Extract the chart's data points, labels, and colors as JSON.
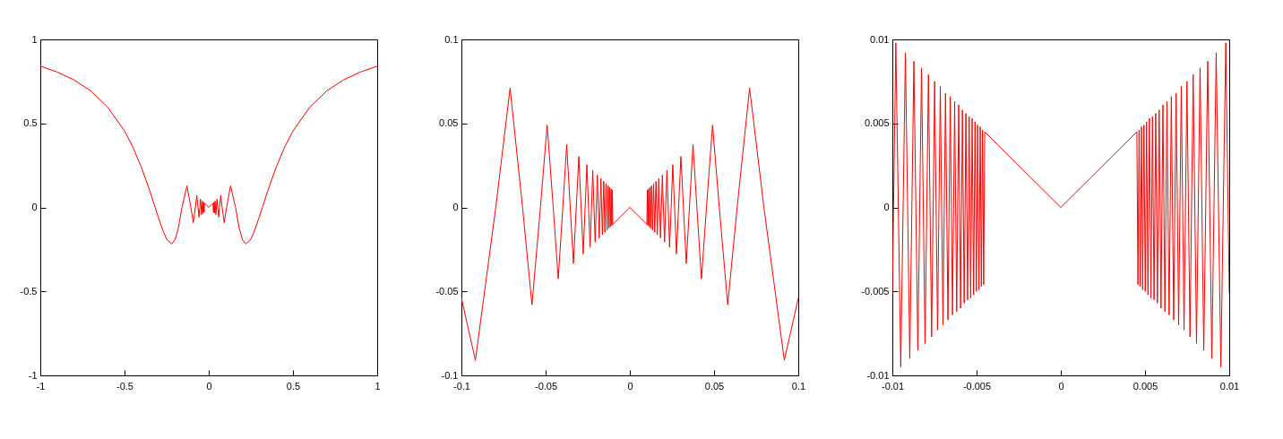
{
  "chart_data": [
    {
      "type": "line",
      "xlim": [
        -1,
        1
      ],
      "ylim": [
        -1,
        1
      ],
      "xticks": [
        -1,
        -0.5,
        0,
        0.5,
        1
      ],
      "yticks": [
        -1,
        -0.5,
        0,
        0.5,
        1
      ],
      "x": [
        -1,
        -0.9,
        -0.8,
        -0.7,
        -0.6,
        -0.5,
        -0.45,
        -0.4,
        -0.35,
        -0.3183,
        -0.3,
        -0.27,
        -0.25,
        -0.22,
        -0.2,
        -0.18,
        -0.1592,
        -0.1294,
        -0.1061,
        -0.0917,
        -0.0796,
        -0.0711,
        -0.0637,
        -0.0581,
        -0.0531,
        -0.0491,
        -0.0425,
        -0.0375,
        -0.0335,
        -0.0303,
        -0.0277,
        -0.0255,
        0,
        0.0255,
        0.0277,
        0.0303,
        0.0335,
        0.0375,
        0.0425,
        0.0491,
        0.0531,
        0.0581,
        0.0637,
        0.0711,
        0.0796,
        0.0917,
        0.1061,
        0.1294,
        0.1592,
        0.18,
        0.2,
        0.22,
        0.25,
        0.27,
        0.3,
        0.3183,
        0.35,
        0.4,
        0.45,
        0.5,
        0.6,
        0.7,
        0.8,
        0.9,
        1
      ],
      "series": [
        {
          "color": "#ff0000",
          "values": [
            0.841,
            0.806,
            0.759,
            0.693,
            0.597,
            0.455,
            0.358,
            0.239,
            0.098,
            0,
            -0.057,
            -0.143,
            -0.189,
            -0.217,
            -0.192,
            -0.12,
            0,
            0.128,
            0,
            -0.091,
            0,
            0.071,
            0,
            -0.058,
            0,
            0.049,
            -0.043,
            0.038,
            -0.034,
            0.03,
            -0.028,
            0.026,
            0,
            0.026,
            -0.028,
            0.03,
            -0.034,
            0.038,
            -0.043,
            0.049,
            0,
            -0.058,
            0,
            0.071,
            0,
            -0.091,
            0,
            0.128,
            0,
            -0.12,
            -0.192,
            -0.217,
            -0.189,
            -0.143,
            -0.057,
            0,
            0.098,
            0.239,
            0.358,
            0.455,
            0.597,
            0.693,
            0.759,
            0.806,
            0.841
          ]
        }
      ]
    },
    {
      "type": "line",
      "xlim": [
        -0.1,
        0.1
      ],
      "ylim": [
        -0.1,
        0.1
      ],
      "xticks": [
        -0.1,
        -0.05,
        0,
        0.05,
        0.1
      ],
      "yticks": [
        -0.1,
        -0.05,
        0,
        0.05,
        0.1
      ],
      "x": [
        -0.1,
        -0.0917,
        -0.0796,
        -0.0711,
        -0.0637,
        -0.0581,
        -0.0531,
        -0.0491,
        -0.0455,
        -0.0425,
        -0.0398,
        -0.0375,
        -0.0335,
        -0.0303,
        -0.0277,
        -0.0255,
        -0.0236,
        -0.022,
        -0.0206,
        -0.0193,
        -0.0182,
        -0.0172,
        -0.0163,
        -0.0155,
        -0.0148,
        -0.0141,
        -0.0135,
        -0.0129,
        -0.0124,
        -0.012,
        -0.0115,
        -0.0111,
        -0.0107,
        -0.0104,
        -0.0101,
        0,
        0.0101,
        0.0104,
        0.0107,
        0.0111,
        0.0115,
        0.012,
        0.0124,
        0.0129,
        0.0135,
        0.0141,
        0.0148,
        0.0155,
        0.0163,
        0.0172,
        0.0182,
        0.0193,
        0.0206,
        0.022,
        0.0236,
        0.0255,
        0.0277,
        0.0303,
        0.0335,
        0.0375,
        0.0398,
        0.0425,
        0.0455,
        0.0491,
        0.0531,
        0.0581,
        0.0637,
        0.0711,
        0.0796,
        0.0917,
        0.1
      ],
      "series": [
        {
          "color": "#ff0000",
          "values": [
            -0.054,
            -0.091,
            0,
            0.071,
            0,
            -0.058,
            0,
            0.049,
            0,
            -0.0425,
            0,
            0.0375,
            -0.0335,
            0.0303,
            -0.0277,
            0.0255,
            -0.0236,
            0.022,
            -0.0206,
            0.0193,
            -0.0182,
            0.0172,
            -0.0163,
            0.0155,
            -0.0148,
            0.0141,
            -0.0135,
            0.0129,
            -0.0124,
            0.012,
            -0.0115,
            0.0111,
            -0.0107,
            0.0104,
            -0.0101,
            0,
            -0.0101,
            0.0104,
            -0.0107,
            0.0111,
            -0.0115,
            0.012,
            -0.0124,
            0.0129,
            -0.0135,
            0.0141,
            -0.0148,
            0.0155,
            -0.0163,
            0.0172,
            -0.0182,
            0.0193,
            -0.0206,
            0.022,
            -0.0236,
            0.0255,
            -0.0277,
            0.0303,
            -0.0335,
            0.0375,
            0,
            -0.0425,
            0,
            0.049,
            0,
            -0.058,
            0,
            0.071,
            0,
            -0.091,
            -0.054
          ]
        }
      ]
    },
    {
      "type": "line",
      "xlim": [
        -0.01,
        0.01
      ],
      "ylim": [
        -0.01,
        0.01
      ],
      "xticks": [
        -0.01,
        -0.005,
        0,
        0.005,
        0.01
      ],
      "yticks": [
        -0.01,
        -0.005,
        0,
        0.005,
        0.01
      ],
      "x": [
        -0.01,
        -0.009794,
        -0.009502,
        -0.009226,
        -0.008966,
        -0.008721,
        -0.008488,
        -0.008268,
        -0.008058,
        -0.007859,
        -0.00767,
        -0.00749,
        -0.007317,
        -0.007153,
        -0.006996,
        -0.006845,
        -0.006701,
        -0.006563,
        -0.00643,
        -0.006303,
        -0.006181,
        -0.006063,
        -0.00595,
        -0.00584,
        -0.005735,
        -0.005634,
        -0.005536,
        -0.005441,
        -0.00535,
        -0.005261,
        -0.005176,
        -0.005093,
        -0.005013,
        -0.004935,
        -0.00486,
        -0.004786,
        -0.004716,
        -0.004647,
        -0.00458,
        -0.004515,
        0,
        0.004515,
        0.00458,
        0.004647,
        0.004716,
        0.004786,
        0.00486,
        0.004935,
        0.005013,
        0.005093,
        0.005176,
        0.005261,
        0.00535,
        0.005441,
        0.005536,
        0.005634,
        0.005735,
        0.00584,
        0.00595,
        0.006063,
        0.006181,
        0.006303,
        0.00643,
        0.006563,
        0.006701,
        0.006845,
        0.006996,
        0.007153,
        0.007317,
        0.00749,
        0.00767,
        0.007859,
        0.008058,
        0.008268,
        0.008488,
        0.008721,
        0.008966,
        0.009226,
        0.009502,
        0.009794,
        0.01
      ],
      "series": [
        {
          "color": "#ff0000",
          "values": [
            -0.0051,
            0.0098,
            -0.0095,
            0.0092,
            -0.009,
            0.0087,
            -0.0085,
            0.0083,
            -0.0081,
            0.0079,
            -0.0077,
            0.0075,
            -0.0073,
            0.0072,
            -0.007,
            0.0068,
            -0.0067,
            0.0066,
            -0.0064,
            0.0063,
            -0.0062,
            0.0061,
            -0.006,
            0.0058,
            -0.0057,
            0.0056,
            -0.0055,
            0.0054,
            -0.0054,
            0.0053,
            -0.0052,
            0.0051,
            -0.005,
            0.0049,
            -0.0049,
            0.0048,
            -0.0047,
            0.0046,
            -0.0046,
            0.0045,
            0,
            0.0045,
            -0.0046,
            0.0046,
            -0.0047,
            0.0048,
            -0.0049,
            0.0049,
            -0.005,
            0.0051,
            -0.0052,
            0.0053,
            -0.0054,
            0.0054,
            -0.0055,
            0.0056,
            -0.0057,
            0.0058,
            -0.006,
            0.0061,
            -0.0062,
            0.0063,
            -0.0064,
            0.0066,
            -0.0067,
            0.0068,
            -0.007,
            0.0072,
            -0.0073,
            0.0075,
            -0.0077,
            0.0079,
            -0.0081,
            0.0083,
            -0.0085,
            0.0087,
            -0.009,
            0.0092,
            -0.0095,
            0.0098,
            -0.0051
          ]
        }
      ]
    }
  ]
}
